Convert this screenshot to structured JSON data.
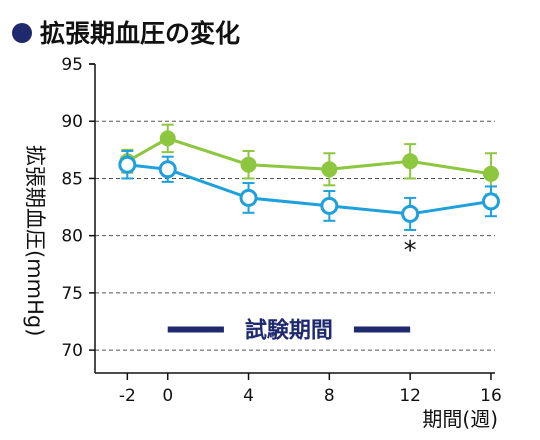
{
  "chart_data": {
    "type": "line",
    "title": "拡張期血圧の変化",
    "ylabel": "拡張期血圧(mmHg)",
    "xlabel": "期間(週)",
    "ylim": [
      68,
      95
    ],
    "y_ticks": [
      70,
      75,
      80,
      85,
      90,
      95
    ],
    "x_ticks": [
      -2,
      0,
      4,
      8,
      12,
      16
    ],
    "grid": "horizontal dashed",
    "series": [
      {
        "color": "#8dc63f",
        "marker": "filled-circle",
        "x": [
          -2,
          0,
          4,
          8,
          12,
          16
        ],
        "y": [
          86.5,
          88.5,
          86.2,
          85.8,
          86.5,
          85.4
        ],
        "error": [
          1.0,
          1.2,
          1.2,
          1.4,
          1.5,
          1.8
        ]
      },
      {
        "color": "#1ea0dc",
        "marker": "open-circle",
        "x": [
          -2,
          0,
          4,
          8,
          12,
          16
        ],
        "y": [
          86.2,
          85.8,
          83.3,
          82.6,
          81.9,
          83.0
        ],
        "error": [
          1.2,
          1.1,
          1.3,
          1.3,
          1.4,
          1.3
        ]
      }
    ],
    "annotations": [
      {
        "text": "*",
        "x": 12,
        "y": 79.2
      },
      {
        "text": "試験期間",
        "x_start": 0,
        "x_end": 12,
        "y": 71.8,
        "color": "#1f2a6e"
      }
    ]
  }
}
